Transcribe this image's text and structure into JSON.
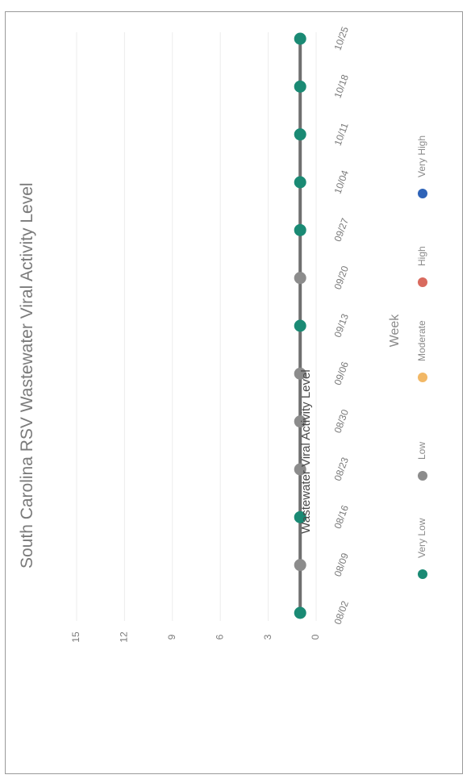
{
  "chart_data": {
    "type": "line",
    "title": "South Carolina RSV Wastewater Viral Activity Level",
    "xlabel": "Week",
    "ylabel": "Wastewater Viral Activity Level",
    "ylim": [
      0,
      15
    ],
    "y_ticks": [
      "0",
      "3",
      "6",
      "9",
      "12",
      "15"
    ],
    "categories": [
      "08/02",
      "08/09",
      "08/16",
      "08/23",
      "08/30",
      "09/06",
      "09/13",
      "09/20",
      "09/27",
      "10/04",
      "10/11",
      "10/18",
      "10/25"
    ],
    "series": [
      {
        "values": [
          1,
          1,
          1,
          1,
          1,
          1,
          1,
          1,
          1,
          1,
          1,
          1,
          1
        ],
        "line_color": "#6f6f6f",
        "point_levels": [
          "Very Low",
          "Low",
          "Very Low",
          "Low",
          "Low",
          "Low",
          "Very Low",
          "Low",
          "Very Low",
          "Very Low",
          "Very Low",
          "Very Low",
          "Very Low"
        ]
      }
    ],
    "grid": true,
    "legend_position": "bottom",
    "legend": [
      {
        "label": "Very Low",
        "color": "#1a8a74"
      },
      {
        "label": "Low",
        "color": "#8c8c8c"
      },
      {
        "label": "Moderate",
        "color": "#f2b866"
      },
      {
        "label": "High",
        "color": "#d96a5e"
      },
      {
        "label": "Very High",
        "color": "#2e63b8"
      }
    ]
  }
}
